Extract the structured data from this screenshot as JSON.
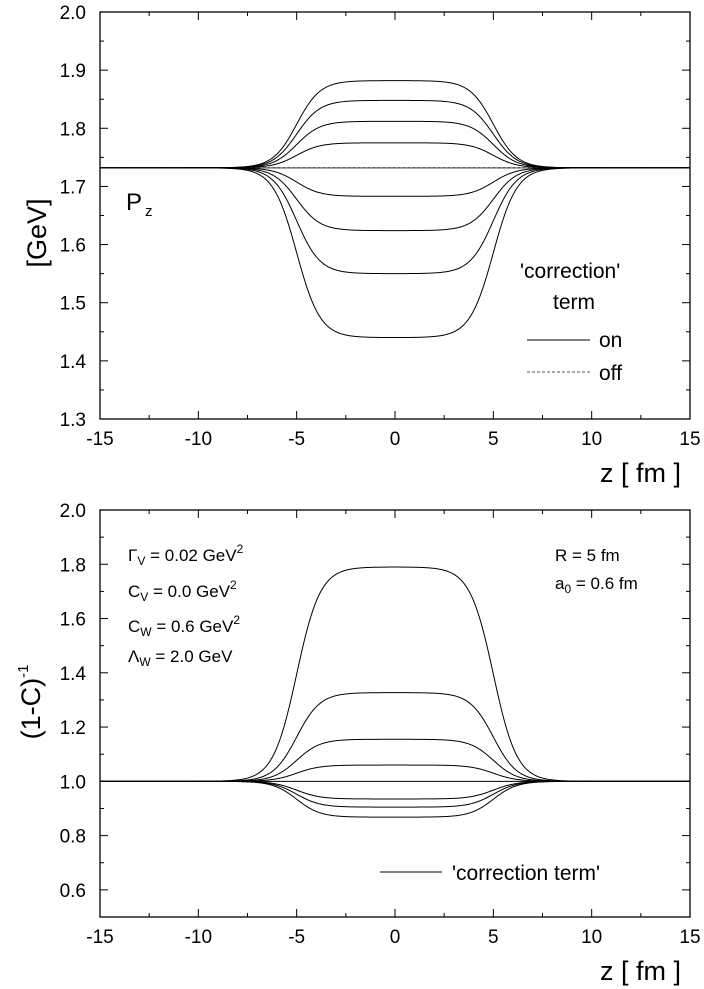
{
  "chart_data": [
    {
      "type": "line",
      "xlabel": "z [ fm ]",
      "ylabel": "[GeV]",
      "xlim": [
        -15,
        15
      ],
      "ylim": [
        1.3,
        2.0
      ],
      "xticks": [
        "-15",
        "-10",
        "-5",
        "0",
        "5",
        "10",
        "15"
      ],
      "yticks": [
        "1.3",
        "1.4",
        "1.5",
        "1.6",
        "1.7",
        "1.8",
        "1.9",
        "2.0"
      ],
      "baseline": 1.732,
      "plateaus": [
        1.882,
        1.848,
        1.812,
        1.775,
        1.683,
        1.624,
        1.55,
        1.44
      ],
      "shape": {
        "R": 5.0,
        "a0": 0.6
      },
      "panel_label": {
        "main": "P",
        "sub": "z"
      },
      "legend": {
        "title_line1": "'correction'",
        "title_line2": "term",
        "on_label": "on",
        "off_label": "off"
      }
    },
    {
      "type": "line",
      "xlabel": "z [ fm ]",
      "ylabel": "(1-C)",
      "ylabel_sup": "-1",
      "xlim": [
        -15,
        15
      ],
      "ylim": [
        0.5,
        2.0
      ],
      "xticks": [
        "-15",
        "-10",
        "-5",
        "0",
        "5",
        "10",
        "15"
      ],
      "yticks": [
        "0.6",
        "0.8",
        "1.0",
        "1.2",
        "1.4",
        "1.6",
        "1.8",
        "2.0"
      ],
      "baseline": 1.0,
      "plateaus": [
        1.79,
        1.327,
        1.155,
        1.06,
        0.935,
        0.905,
        0.868
      ],
      "shape": {
        "R": 5.0,
        "a0": 0.6
      },
      "legend": {
        "label": "'correction term'"
      },
      "parameters": {
        "gamma_v": {
          "sym": "Γ",
          "sub": "V",
          "rest": " = 0.02 GeV",
          "sup": "2"
        },
        "c_v": {
          "sym": "C",
          "sub": "V",
          "rest": " = 0.0 GeV",
          "sup": "2"
        },
        "c_w": {
          "sym": "C",
          "sub": "W",
          "rest": " = 0.6 GeV",
          "sup": "2"
        },
        "lambda_w": {
          "sym": "Λ",
          "sub": "W",
          "rest": " = 2.0 GeV",
          "sup": ""
        },
        "r": "R = 5 fm",
        "a0": {
          "sym": "a",
          "sub": "0",
          "rest": " = 0.6 fm"
        }
      }
    }
  ]
}
